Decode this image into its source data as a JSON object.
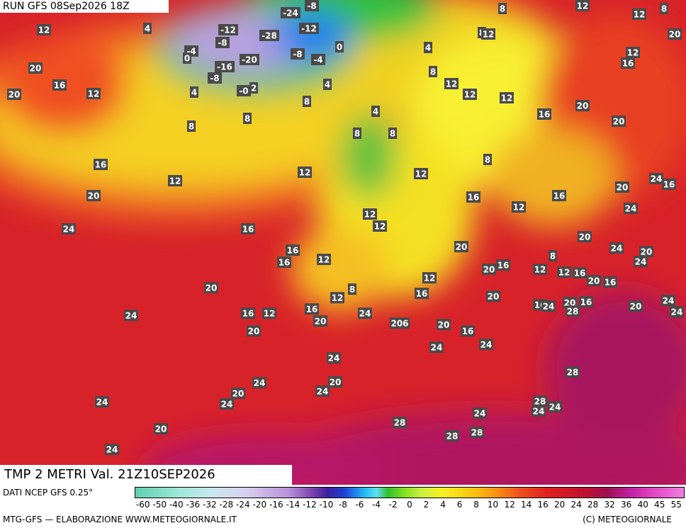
{
  "header": {
    "run": "RUN GFS 08Sep2026 18Z"
  },
  "map": {
    "labels": [
      "-24",
      "-8",
      "-12",
      "-8",
      "-28",
      "-12",
      "-4",
      "0",
      "-16",
      "-20",
      "-8",
      "-4",
      "0",
      "-8",
      "-0",
      "2",
      "12",
      "20",
      "20",
      "16",
      "12",
      "4",
      "4",
      "4",
      "8",
      "8",
      "8",
      "8",
      "12",
      "12",
      "8",
      "20",
      "8",
      "12",
      "12",
      "16",
      "4",
      "8",
      "12",
      "12",
      "12",
      "16",
      "20",
      "20",
      "4",
      "8",
      "8",
      "16",
      "12",
      "12",
      "20",
      "12",
      "8",
      "16",
      "12",
      "16",
      "20",
      "24",
      "24",
      "16",
      "12",
      "12",
      "16",
      "24",
      "20",
      "24",
      "20",
      "24",
      "16",
      "16",
      "12",
      "20",
      "20",
      "16",
      "8",
      "12",
      "12",
      "16",
      "20",
      "16",
      "20",
      "8",
      "12",
      "12",
      "16",
      "20",
      "16",
      "24",
      "20",
      "16",
      "28",
      "20",
      "24",
      "24",
      "24",
      "16",
      "12",
      "16",
      "24",
      "20",
      "20",
      "206",
      "20",
      "16",
      "24",
      "24",
      "24",
      "28",
      "24",
      "20",
      "24",
      "20",
      "24",
      "24",
      "28",
      "24",
      "24",
      "24",
      "28",
      "28",
      "28",
      "20",
      "24"
    ]
  },
  "title": "TMP 2 METRI Val. 21Z10SEP2026",
  "legend": {
    "source": "DATI NCEP GFS 0.25°",
    "ticks": [
      -60,
      -50,
      -40,
      -36,
      -32,
      -28,
      -24,
      -20,
      -16,
      -14,
      -12,
      -10,
      -8,
      -6,
      -4,
      -2,
      0,
      2,
      4,
      6,
      8,
      10,
      12,
      14,
      16,
      20,
      24,
      28,
      32,
      36,
      40,
      45,
      55
    ]
  },
  "footer": {
    "left": "MTG-GFS — ELABORAZIONE WWW.METEOGIORNALE.IT",
    "right": "(C) METEOGIORNALE"
  }
}
